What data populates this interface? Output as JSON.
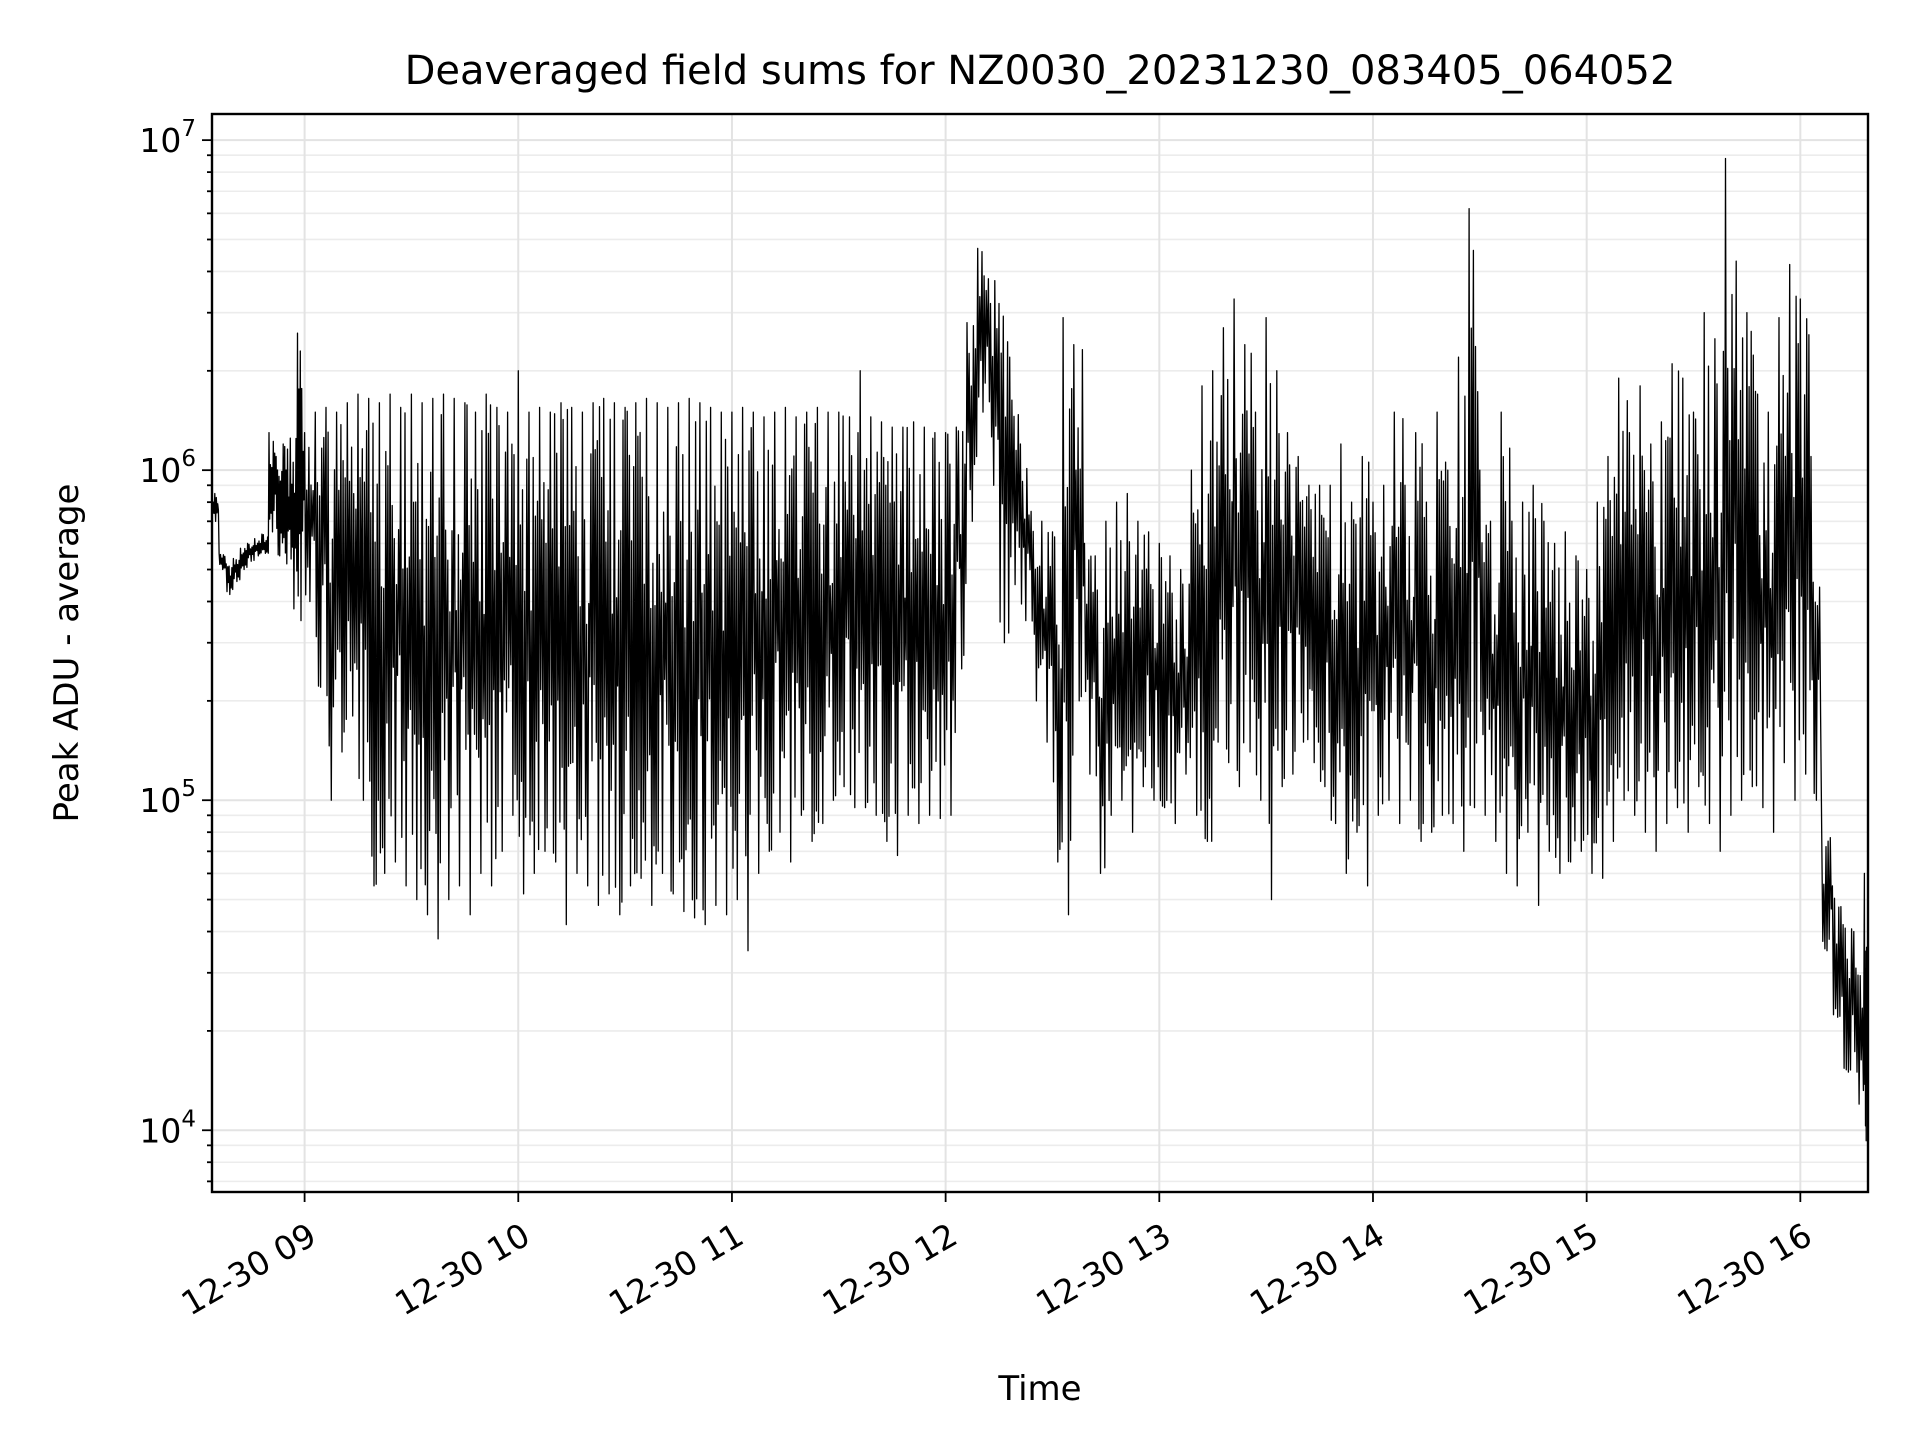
{
  "chart_data": {
    "type": "line",
    "title": "Deaveraged field sums for NZ0030_20231230_083405_064052",
    "xlabel": "Time",
    "ylabel": "Peak ADU - average",
    "yscale": "log",
    "ylim": [
      6500,
      12000000
    ],
    "xlim": [
      "2023-12-30 08:34",
      "2023-12-30 16:19"
    ],
    "x_ticks": [
      {
        "value": "2023-12-30 09:00",
        "label": "12-30 09"
      },
      {
        "value": "2023-12-30 10:00",
        "label": "12-30 10"
      },
      {
        "value": "2023-12-30 11:00",
        "label": "12-30 11"
      },
      {
        "value": "2023-12-30 12:00",
        "label": "12-30 12"
      },
      {
        "value": "2023-12-30 13:00",
        "label": "12-30 13"
      },
      {
        "value": "2023-12-30 14:00",
        "label": "12-30 14"
      },
      {
        "value": "2023-12-30 15:00",
        "label": "12-30 15"
      },
      {
        "value": "2023-12-30 16:00",
        "label": "12-30 16"
      }
    ],
    "y_ticks": [
      {
        "value": 10000,
        "base": "10",
        "exp": "4"
      },
      {
        "value": 100000,
        "base": "10",
        "exp": "5"
      },
      {
        "value": 1000000,
        "base": "10",
        "exp": "6"
      },
      {
        "value": 10000000,
        "base": "10",
        "exp": "7"
      }
    ],
    "grid": true,
    "line_color": "#000000",
    "series": [
      {
        "x": [
          "08:34",
          "08:36",
          "08:38",
          "08:40",
          "08:42",
          "08:44",
          "08:46",
          "08:48",
          "08:50",
          "08:52",
          "08:54",
          "08:56",
          "08:58",
          "09:00",
          "09:03",
          "09:06",
          "09:09",
          "09:12",
          "09:15",
          "09:18",
          "09:21",
          "09:24",
          "09:27",
          "09:30",
          "09:33",
          "09:36",
          "09:39",
          "09:42",
          "09:45",
          "09:48",
          "09:51",
          "09:54",
          "09:57",
          "10:00",
          "10:03",
          "10:06",
          "10:09",
          "10:12",
          "10:15",
          "10:18",
          "10:21",
          "10:24",
          "10:27",
          "10:30",
          "10:33",
          "10:36",
          "10:39",
          "10:42",
          "10:45",
          "10:48",
          "10:51",
          "10:54",
          "10:57",
          "11:00",
          "11:03",
          "11:06",
          "11:09",
          "11:12",
          "11:15",
          "11:18",
          "11:21",
          "11:24",
          "11:27",
          "11:30",
          "11:33",
          "11:36",
          "11:39",
          "11:42",
          "11:45",
          "11:48",
          "11:51",
          "11:54",
          "11:57",
          "12:00",
          "12:03",
          "12:06",
          "12:09",
          "12:12",
          "12:15",
          "12:18",
          "12:21",
          "12:24",
          "12:27",
          "12:30",
          "12:33",
          "12:36",
          "12:39",
          "12:42",
          "12:45",
          "12:48",
          "12:51",
          "12:54",
          "12:57",
          "13:00",
          "13:03",
          "13:06",
          "13:09",
          "13:12",
          "13:15",
          "13:18",
          "13:21",
          "13:24",
          "13:27",
          "13:30",
          "13:33",
          "13:36",
          "13:39",
          "13:42",
          "13:45",
          "13:48",
          "13:51",
          "13:54",
          "13:57",
          "14:00",
          "14:03",
          "14:06",
          "14:09",
          "14:12",
          "14:15",
          "14:18",
          "14:21",
          "14:24",
          "14:27",
          "14:30",
          "14:33",
          "14:36",
          "14:39",
          "14:42",
          "14:45",
          "14:48",
          "14:51",
          "14:54",
          "14:57",
          "15:00",
          "15:03",
          "15:06",
          "15:09",
          "15:12",
          "15:15",
          "15:18",
          "15:21",
          "15:24",
          "15:27",
          "15:30",
          "15:33",
          "15:36",
          "15:39",
          "15:42",
          "15:45",
          "15:48",
          "15:51",
          "15:54",
          "15:57",
          "16:00",
          "16:03",
          "16:06",
          "16:09",
          "16:12",
          "16:15",
          "16:18"
        ],
        "hi": [
          850000,
          560000,
          520000,
          540000,
          580000,
          600000,
          620000,
          640000,
          1300000,
          1100000,
          1200000,
          1250000,
          2600000,
          1300000,
          1500000,
          1550000,
          1500000,
          1600000,
          1700000,
          1650000,
          1600000,
          1700000,
          1550000,
          1700000,
          1600000,
          1650000,
          1700000,
          1650000,
          1600000,
          1500000,
          1700000,
          1550000,
          1500000,
          2000000,
          1500000,
          1550000,
          1500000,
          1600000,
          1550000,
          1500000,
          1600000,
          1650000,
          1600000,
          1550000,
          1600000,
          1650000,
          1600000,
          1550000,
          1600000,
          1650000,
          1600000,
          1550000,
          1500000,
          1500000,
          1550000,
          1500000,
          1450000,
          1500000,
          1550000,
          1450000,
          1500000,
          1550000,
          1500000,
          1500000,
          1450000,
          2000000,
          1450000,
          1400000,
          1350000,
          1350000,
          1400000,
          1350000,
          1300000,
          1300000,
          1350000,
          2800000,
          4700000,
          3800000,
          3200000,
          2200000,
          1200000,
          750000,
          700000,
          650000,
          2900000,
          2400000,
          600000,
          550000,
          700000,
          800000,
          850000,
          700000,
          650000,
          600000,
          550000,
          500000,
          1000000,
          1800000,
          2000000,
          2700000,
          3300000,
          2400000,
          1500000,
          2900000,
          2000000,
          1300000,
          1100000,
          900000,
          900000,
          900000,
          1200000,
          800000,
          1100000,
          800000,
          900000,
          1500000,
          900000,
          1300000,
          800000,
          1500000,
          1000000,
          2200000,
          6200000,
          1000000,
          700000,
          1500000,
          700000,
          800000,
          900000,
          700000,
          600000,
          650000,
          550000,
          500000,
          800000,
          1100000,
          1900000,
          1300000,
          1800000,
          1200000,
          1400000,
          2100000,
          1900000,
          1500000,
          3000000,
          2500000,
          8800000,
          4300000,
          3000000,
          1700000,
          1500000,
          2900000,
          4200000,
          3300000,
          1100000,
          80000,
          55000,
          42000,
          40000,
          60000
        ],
        "lo": [
          700000,
          500000,
          420000,
          460000,
          500000,
          530000,
          550000,
          560000,
          650000,
          550000,
          520000,
          380000,
          350000,
          400000,
          220000,
          100000,
          140000,
          180000,
          100000,
          55000,
          60000,
          65000,
          55000,
          50000,
          45000,
          38000,
          50000,
          55000,
          45000,
          60000,
          55000,
          70000,
          90000,
          52000,
          60000,
          70000,
          65000,
          42000,
          60000,
          55000,
          48000,
          52000,
          45000,
          55000,
          58000,
          48000,
          60000,
          52000,
          46000,
          44000,
          42000,
          48000,
          45000,
          50000,
          35000,
          60000,
          70000,
          80000,
          65000,
          90000,
          75000,
          85000,
          100000,
          110000,
          95000,
          95000,
          90000,
          75000,
          68000,
          90000,
          85000,
          90000,
          88000,
          90000,
          250000,
          700000,
          1500000,
          900000,
          300000,
          450000,
          350000,
          200000,
          150000,
          65000,
          45000,
          200000,
          120000,
          60000,
          90000,
          100000,
          80000,
          110000,
          100000,
          95000,
          85000,
          120000,
          90000,
          75000,
          150000,
          130000,
          110000,
          140000,
          100000,
          50000,
          110000,
          120000,
          150000,
          130000,
          110000,
          85000,
          60000,
          80000,
          55000,
          90000,
          100000,
          85000,
          100000,
          75000,
          80000,
          90000,
          85000,
          70000,
          95000,
          90000,
          75000,
          60000,
          55000,
          80000,
          48000,
          70000,
          60000,
          65000,
          70000,
          60000,
          58000,
          75000,
          100000,
          90000,
          80000,
          70000,
          85000,
          95000,
          80000,
          110000,
          85000,
          70000,
          90000,
          100000,
          110000,
          95000,
          80000,
          130000,
          100000,
          120000,
          100000,
          35000,
          22000,
          15000,
          12000,
          9300
        ]
      }
    ]
  }
}
